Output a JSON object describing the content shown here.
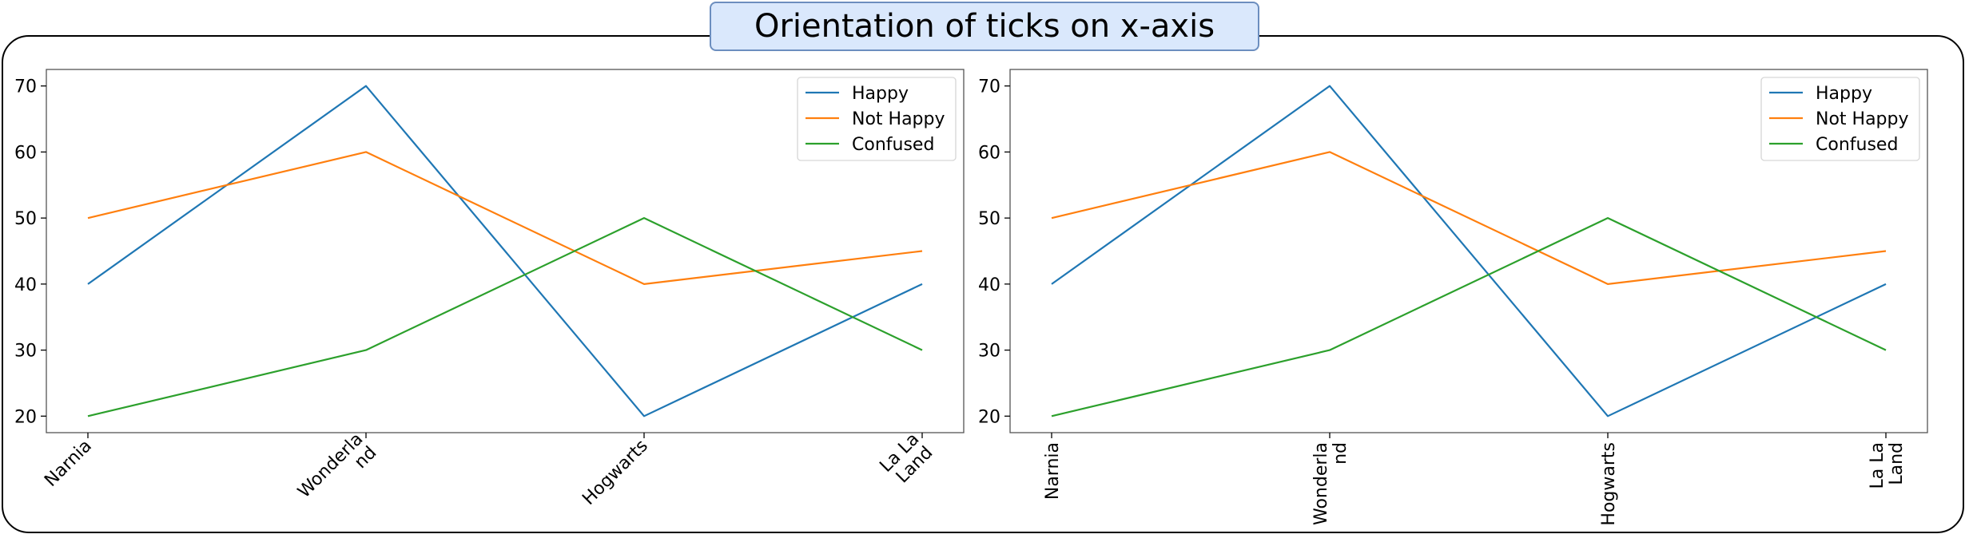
{
  "figure": {
    "title": "Orientation of ticks on x-axis"
  },
  "chart_data": [
    {
      "type": "line",
      "tick_rotation": 45,
      "categories": [
        "Narnia",
        "Wonderland",
        "Hogwarts",
        "La La Land"
      ],
      "tick_labels": [
        [
          "Narnia"
        ],
        [
          "Wonderla",
          "nd"
        ],
        [
          "Hogwarts"
        ],
        [
          "La La",
          "Land"
        ]
      ],
      "series": [
        {
          "name": "Happy",
          "color": "#1f77b4",
          "values": [
            40,
            70,
            20,
            40
          ]
        },
        {
          "name": "Not Happy",
          "color": "#ff7f0e",
          "values": [
            50,
            60,
            40,
            45
          ]
        },
        {
          "name": "Confused",
          "color": "#2ca02c",
          "values": [
            20,
            30,
            50,
            30
          ]
        }
      ],
      "yticks": [
        20,
        30,
        40,
        50,
        60,
        70
      ],
      "ylim": [
        17.5,
        72.5
      ],
      "title": "",
      "xlabel": "",
      "ylabel": "",
      "grid": false,
      "legend": "upper right"
    },
    {
      "type": "line",
      "tick_rotation": 90,
      "categories": [
        "Narnia",
        "Wonderland",
        "Hogwarts",
        "La La Land"
      ],
      "tick_labels": [
        [
          "Narnia"
        ],
        [
          "Wonderla",
          "nd"
        ],
        [
          "Hogwarts"
        ],
        [
          "La La",
          "Land"
        ]
      ],
      "series": [
        {
          "name": "Happy",
          "color": "#1f77b4",
          "values": [
            40,
            70,
            20,
            40
          ]
        },
        {
          "name": "Not Happy",
          "color": "#ff7f0e",
          "values": [
            50,
            60,
            40,
            45
          ]
        },
        {
          "name": "Confused",
          "color": "#2ca02c",
          "values": [
            20,
            30,
            50,
            30
          ]
        }
      ],
      "yticks": [
        20,
        30,
        40,
        50,
        60,
        70
      ],
      "ylim": [
        17.5,
        72.5
      ],
      "title": "",
      "xlabel": "",
      "ylabel": "",
      "grid": false,
      "legend": "upper right"
    }
  ]
}
